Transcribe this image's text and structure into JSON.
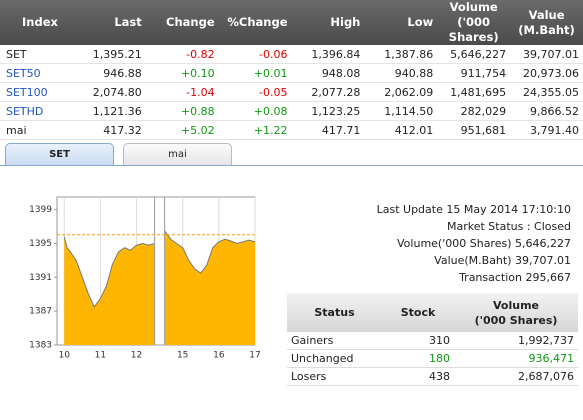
{
  "market_table": {
    "headers": [
      "Index",
      "Last",
      "Change",
      "%Change",
      "High",
      "Low",
      "Volume\n('000 Shares)",
      "Value\n(M.Baht)"
    ],
    "rows": [
      [
        "SET",
        "1,395.21",
        "-0.82",
        "-0.06",
        "1,396.84",
        "1,387.86",
        "5,646,227",
        "39,707.01"
      ],
      [
        "SET50",
        "946.88",
        "+0.10",
        "+0.01",
        "948.08",
        "940.88",
        "911,754",
        "20,973.06"
      ],
      [
        "SET100",
        "2,074.80",
        "-1.04",
        "-0.05",
        "2,077.28",
        "2,062.09",
        "1,481,695",
        "24,355.05"
      ],
      [
        "SETHD",
        "1,121.36",
        "+0.88",
        "+0.08",
        "1,123.25",
        "1,114.50",
        "282,029",
        "9,866.52"
      ],
      [
        "mai",
        "417.32",
        "+5.02",
        "+1.22",
        "417.71",
        "412.01",
        "951,681",
        "3,791.40"
      ]
    ]
  },
  "tabs": [
    "SET",
    "mai"
  ],
  "chart_data": {
    "type": "area",
    "x": [
      10,
      10.08,
      10.17,
      10.33,
      10.5,
      10.67,
      10.83,
      11,
      11.17,
      11.33,
      11.5,
      11.67,
      11.83,
      12,
      12.17,
      12.33,
      12.5,
      null,
      14.5,
      14.67,
      14.83,
      15,
      15.17,
      15.33,
      15.5,
      15.67,
      15.83,
      16,
      16.17,
      16.33,
      16.5,
      16.67,
      16.83,
      17
    ],
    "series": [
      {
        "color": "#ffb600",
        "line_color": "#777777",
        "values": [
          1395.8,
          1394.5,
          1394,
          1393,
          1391,
          1389,
          1387.5,
          1388.5,
          1390,
          1392.5,
          1394,
          1394.5,
          1394.2,
          1394.8,
          1395,
          1394.8,
          1395,
          null,
          1396.5,
          1395.5,
          1395,
          1394.5,
          1393,
          1392,
          1391.5,
          1392.5,
          1394.5,
          1395.2,
          1395.5,
          1395.3,
          1395,
          1395.2,
          1395.4,
          1395.2
        ]
      }
    ],
    "reference": 1396.03,
    "reference_color": "#ff9900",
    "xlim": [
      9.8,
      17
    ],
    "xbreak": [
      12.5,
      14.5
    ],
    "xticks": [
      10,
      11,
      12,
      15,
      16,
      17
    ],
    "ylim": [
      1383,
      1400.5
    ],
    "yticks": [
      1383,
      1387,
      1391,
      1395,
      1399
    ],
    "grid": true
  },
  "summary": [
    {
      "label": "Last Update",
      "value": "15 May 2014 17:10:10"
    },
    {
      "label": "Market Status :",
      "value": "Closed"
    },
    {
      "label": "Volume('000 Shares)",
      "value": "5,646,227"
    },
    {
      "label": "Value(M.Baht)",
      "value": "39,707.01"
    },
    {
      "label": "Transaction",
      "value": "295,667"
    }
  ],
  "status_table": {
    "headers": [
      "Status",
      "Stock",
      "Volume\n('000 Shares)"
    ],
    "rows": [
      [
        "Gainers",
        "310",
        "1,992,737"
      ],
      [
        "Unchanged",
        "180",
        "936,471"
      ],
      [
        "Losers",
        "438",
        "2,687,076"
      ]
    ]
  }
}
